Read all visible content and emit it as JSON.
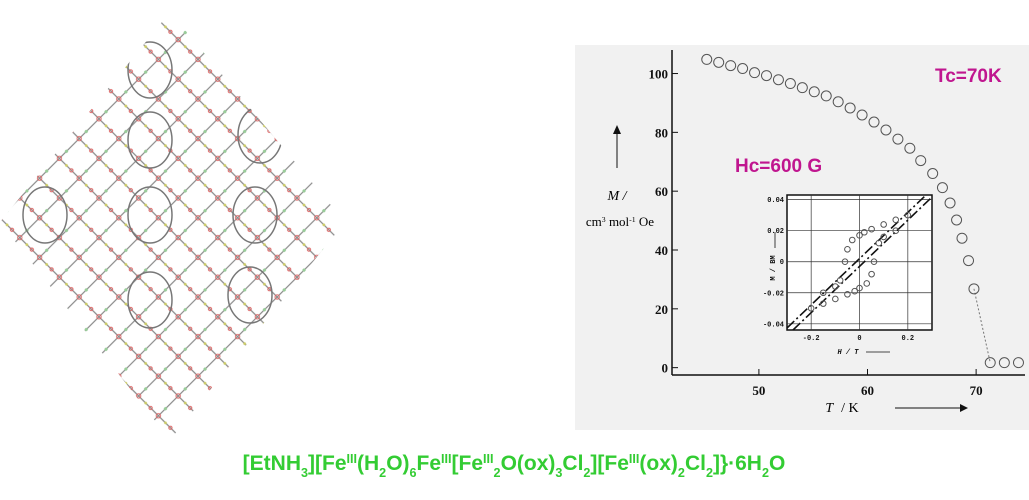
{
  "chart_data": [
    {
      "type": "scatter",
      "x_label": {
        "symbol": "T",
        "unit": "/  K"
      },
      "y_label": {
        "line1": "M /",
        "line2": [
          {
            "text": "cm"
          },
          {
            "text": "3",
            "position": "sup"
          },
          {
            "text": " mol"
          },
          {
            "text": "-1",
            "position": "sup"
          },
          {
            "text": " Oe"
          }
        ]
      },
      "annotations": [
        "Tc=70K",
        "Hc=600 G"
      ],
      "x": [
        45.2,
        46.3,
        47.4,
        48.5,
        49.6,
        50.7,
        51.8,
        52.9,
        54.0,
        55.1,
        56.2,
        57.3,
        58.4,
        59.5,
        60.6,
        61.7,
        62.8,
        63.9,
        64.9,
        66.0,
        66.9,
        67.6,
        68.2,
        68.7,
        69.3,
        69.8,
        71.3,
        72.6,
        73.9
      ],
      "values": [
        104.8,
        103.8,
        102.7,
        101.7,
        100.3,
        99.3,
        97.9,
        96.6,
        95.2,
        93.8,
        92.4,
        90.4,
        88.3,
        85.9,
        83.5,
        80.8,
        77.7,
        74.6,
        70.4,
        66.0,
        61.2,
        56.0,
        50.2,
        44.0,
        36.4,
        26.8,
        1.7,
        1.7,
        1.7
      ],
      "color": "#555555",
      "xlim": [
        42,
        74.5
      ],
      "xticks": [
        50,
        60,
        70
      ],
      "ylim": [
        -2.5,
        108
      ],
      "yticks": [
        0,
        20,
        40,
        60,
        80,
        100
      ]
    },
    {
      "type": "scatter",
      "x_label": "H / T",
      "y_label": "M / BM",
      "x": [
        0.2,
        0.15,
        0.1,
        0.05,
        0.02,
        0,
        -0.03,
        -0.05,
        -0.06,
        -0.08,
        -0.1,
        -0.15,
        0.15,
        0.1,
        0.08,
        0.06,
        0.05,
        0.03,
        0,
        -0.02,
        -0.05,
        -0.1,
        -0.15,
        -0.2
      ],
      "values": [
        0.03,
        0.027,
        0.024,
        0.021,
        0.019,
        0.017,
        0.014,
        0.008,
        0,
        -0.012,
        -0.016,
        -0.02,
        0.02,
        0.016,
        0.012,
        0,
        -0.008,
        -0.014,
        -0.017,
        -0.019,
        -0.021,
        -0.024,
        -0.027,
        -0.03
      ],
      "color": "#555555",
      "xlim": [
        -0.3,
        0.3
      ],
      "xticks": [
        -0.2,
        0,
        0.2
      ],
      "ylim": [
        -0.044,
        0.043
      ],
      "yticks": [
        -0.04,
        -0.02,
        0,
        0.02,
        0.04
      ],
      "grid": true
    }
  ],
  "caption": [
    {
      "text": "[EtNH"
    },
    {
      "text": "3",
      "position": "sub"
    },
    {
      "text": "][Fe"
    },
    {
      "text": "III",
      "position": "sup"
    },
    {
      "text": "(H"
    },
    {
      "text": "2",
      "position": "sub"
    },
    {
      "text": "O)"
    },
    {
      "text": "6",
      "position": "sub"
    },
    {
      "text": "Fe"
    },
    {
      "text": "III",
      "position": "sup"
    },
    {
      "text": "[Fe"
    },
    {
      "text": "III",
      "position": "sup"
    },
    {
      "text": "2",
      "position": "sub"
    },
    {
      "text": "O(ox)"
    },
    {
      "text": "3",
      "position": "sub"
    },
    {
      "text": "Cl"
    },
    {
      "text": "2",
      "position": "sub"
    },
    {
      "text": "][Fe"
    },
    {
      "text": "III",
      "position": "sup"
    },
    {
      "text": "(ox)"
    },
    {
      "text": "2",
      "position": "sub"
    },
    {
      "text": "Cl"
    },
    {
      "text": "2",
      "position": "sub"
    },
    {
      "text": "]}·6H"
    },
    {
      "text": "2",
      "position": "sub"
    },
    {
      "text": "O"
    }
  ]
}
